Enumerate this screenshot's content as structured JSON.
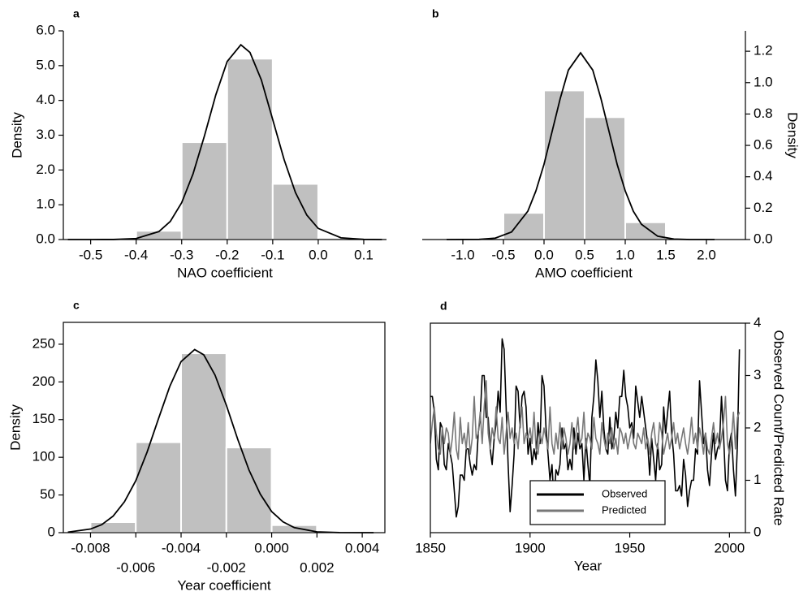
{
  "chart_data": [
    {
      "type": "histogram",
      "label": "a",
      "xlabel": "NAO coefficient",
      "ylabel": "Density",
      "y_axis_side": "left",
      "frame": false,
      "bar_color": "#c0c0c0",
      "curve_color": "#000000",
      "bins": [
        -0.4,
        -0.3,
        -0.2,
        -0.1,
        0.0,
        0.1
      ],
      "values": [
        0.25,
        2.8,
        5.2,
        1.6,
        0.05
      ],
      "curve": {
        "x": [
          -0.55,
          -0.5,
          -0.45,
          -0.4,
          -0.35,
          -0.325,
          -0.3,
          -0.275,
          -0.25,
          -0.225,
          -0.2,
          -0.17,
          -0.15,
          -0.125,
          -0.1,
          -0.075,
          -0.05,
          -0.025,
          0,
          0.05,
          0.1,
          0.14
        ],
        "values": [
          0,
          0,
          0.002,
          0.03,
          0.23,
          0.52,
          1.06,
          1.89,
          2.98,
          4.16,
          5.12,
          5.6,
          5.38,
          4.59,
          3.45,
          2.3,
          1.35,
          0.7,
          0.32,
          0.05,
          0.004,
          0
        ]
      },
      "xlim": [
        -0.56,
        0.15
      ],
      "xticks": [
        -0.5,
        -0.4,
        -0.3,
        -0.2,
        -0.1,
        {
          "value": 0,
          "label": "0.0"
        },
        0.1
      ],
      "ylim": [
        0,
        6
      ],
      "yticks": [
        {
          "value": 0,
          "label": "0.0"
        },
        {
          "value": 1,
          "label": "1.0"
        },
        {
          "value": 2,
          "label": "2.0"
        },
        {
          "value": 3,
          "label": "3.0"
        },
        {
          "value": 4,
          "label": "4.0"
        },
        {
          "value": 5,
          "label": "5.0"
        },
        {
          "value": 6,
          "label": "6.0"
        }
      ]
    },
    {
      "type": "histogram",
      "label": "b",
      "xlabel": "AMO coefficient",
      "ylabel": "Density",
      "y_axis_side": "right",
      "frame": false,
      "bar_color": "#c0c0c0",
      "curve_color": "#000000",
      "bins": [
        -0.5,
        0.0,
        0.5,
        1.0,
        1.5
      ],
      "values": [
        0.17,
        0.95,
        0.78,
        0.11
      ],
      "curve": {
        "x": [
          -1.2,
          -0.8,
          -0.6,
          -0.4,
          -0.2,
          -0.1,
          0,
          0.1,
          0.2,
          0.3,
          0.45,
          0.6,
          0.7,
          0.8,
          0.9,
          1.0,
          1.1,
          1.2,
          1.4,
          1.6,
          1.8,
          2.1
        ],
        "values": [
          0,
          0.001,
          0.009,
          0.048,
          0.18,
          0.31,
          0.48,
          0.69,
          0.9,
          1.08,
          1.19,
          1.08,
          0.9,
          0.69,
          0.48,
          0.31,
          0.18,
          0.097,
          0.021,
          0.003,
          0,
          0
        ]
      },
      "xlim": [
        -1.5,
        2.48
      ],
      "xticks": [
        {
          "value": -1,
          "label": "-1.0"
        },
        -0.5,
        {
          "value": 0,
          "label": "0.0"
        },
        0.5,
        {
          "value": 1,
          "label": "1.0"
        },
        1.5,
        {
          "value": 2,
          "label": "2.0"
        }
      ],
      "ylim": [
        0,
        1.33
      ],
      "yticks": [
        {
          "value": 0,
          "label": "0.0"
        },
        0.2,
        0.4,
        0.6,
        0.8,
        {
          "value": 1,
          "label": "1.0"
        },
        1.2
      ]
    },
    {
      "type": "histogram",
      "label": "c",
      "xlabel": "Year coefficient",
      "ylabel": "Density",
      "y_axis_side": "left",
      "frame": true,
      "xtick_stagger": true,
      "bar_color": "#c0c0c0",
      "curve_color": "#000000",
      "bins": [
        -0.008,
        -0.006,
        -0.004,
        -0.002,
        0.0,
        0.002
      ],
      "values": [
        14,
        120,
        238,
        113,
        10
      ],
      "curve": {
        "x": [
          -0.009,
          -0.008,
          -0.0075,
          -0.007,
          -0.0065,
          -0.006,
          -0.0055,
          -0.005,
          -0.0045,
          -0.004,
          -0.0034,
          -0.003,
          -0.0025,
          -0.002,
          -0.0015,
          -0.001,
          -0.0005,
          0,
          0.0005,
          0.001,
          0.002,
          0.003,
          0.0045
        ],
        "values": [
          0.72,
          4.8,
          10.7,
          22,
          41,
          69,
          107,
          151,
          194,
          227,
          243,
          236,
          209,
          169,
          124,
          83,
          51,
          28,
          14.4,
          6.7,
          1.1,
          0.12,
          0
        ]
      },
      "xlim": [
        -0.0092,
        0.005
      ],
      "xticks": [
        -0.008,
        -0.006,
        -0.004,
        -0.002,
        {
          "value": 0,
          "label": "0.000"
        },
        0.002,
        0.004
      ],
      "ylim": [
        0,
        279
      ],
      "yticks": [
        0,
        50,
        100,
        150,
        200,
        250
      ]
    },
    {
      "type": "line",
      "label": "d",
      "xlabel": "Year",
      "ylabel": "Observed Count/Predicted Rate",
      "y_axis_side": "right",
      "frame": true,
      "legend": "lower center",
      "x": [
        1850,
        1851,
        1852,
        1853,
        1854,
        1855,
        1856,
        1857,
        1858,
        1859,
        1860,
        1861,
        1862,
        1863,
        1864,
        1865,
        1866,
        1867,
        1868,
        1869,
        1870,
        1871,
        1872,
        1873,
        1874,
        1875,
        1876,
        1877,
        1878,
        1879,
        1880,
        1881,
        1882,
        1883,
        1884,
        1885,
        1886,
        1887,
        1888,
        1889,
        1890,
        1891,
        1892,
        1893,
        1894,
        1895,
        1896,
        1897,
        1898,
        1899,
        1900,
        1901,
        1902,
        1903,
        1904,
        1905,
        1906,
        1907,
        1908,
        1909,
        1910,
        1911,
        1912,
        1913,
        1914,
        1915,
        1916,
        1917,
        1918,
        1919,
        1920,
        1921,
        1922,
        1923,
        1924,
        1925,
        1926,
        1927,
        1928,
        1929,
        1930,
        1931,
        1932,
        1933,
        1934,
        1935,
        1936,
        1937,
        1938,
        1939,
        1940,
        1941,
        1942,
        1943,
        1944,
        1945,
        1946,
        1947,
        1948,
        1949,
        1950,
        1951,
        1952,
        1953,
        1954,
        1955,
        1956,
        1957,
        1958,
        1959,
        1960,
        1961,
        1962,
        1963,
        1964,
        1965,
        1966,
        1967,
        1968,
        1969,
        1970,
        1971,
        1972,
        1973,
        1974,
        1975,
        1976,
        1977,
        1978,
        1979,
        1980,
        1981,
        1982,
        1983,
        1984,
        1985,
        1986,
        1987,
        1988,
        1989,
        1990,
        1991,
        1992,
        1993,
        1994,
        1995,
        1996,
        1997,
        1998,
        1999,
        2000,
        2001,
        2002,
        2003,
        2004,
        2005
      ],
      "series": [
        {
          "name": "Observed",
          "color": "#000000",
          "values": [
            2.6,
            2.6,
            2.3,
            1.4,
            1.2,
            2.1,
            2.0,
            1.3,
            1.2,
            1.7,
            1.5,
            1.3,
            0.8,
            0.3,
            0.5,
            1.1,
            1.1,
            1.0,
            1.6,
            1.6,
            1.3,
            1.1,
            1.3,
            1.2,
            1.9,
            2.2,
            3.0,
            3.0,
            2.2,
            2.2,
            1.6,
            1.3,
            1.8,
            2.1,
            2.7,
            2.3,
            3.7,
            3.5,
            2.4,
            1.3,
            0.4,
            0.9,
            1.5,
            2.8,
            2.7,
            2.0,
            2.6,
            2.7,
            2.4,
            1.5,
            1.8,
            1.3,
            1.6,
            1.4,
            2.1,
            1.7,
            3.0,
            2.8,
            2.0,
            1.5,
            1.0,
            1.3,
            0.6,
            1.2,
            1.1,
            1.3,
            2.0,
            1.6,
            1.7,
            1.2,
            1.4,
            1.2,
            2.0,
            1.5,
            1.9,
            1.6,
            1.7,
            1.0,
            1.8,
            1.3,
            0.9,
            2.2,
            2.6,
            3.3,
            2.9,
            2.2,
            2.7,
            2.0,
            1.6,
            1.5,
            2.2,
            1.6,
            1.8,
            2.3,
            2.0,
            2.6,
            2.6,
            3.1,
            2.6,
            2.4,
            2.0,
            2.1,
            1.8,
            2.8,
            2.5,
            2.2,
            2.6,
            2.3,
            2.0,
            1.7,
            1.1,
            1.8,
            1.4,
            1.0,
            1.7,
            1.2,
            1.3,
            2.4,
            1.9,
            2.3,
            2.7,
            1.9,
            1.5,
            0.8,
            0.8,
            0.9,
            0.7,
            1.4,
            1.1,
            0.5,
            0.8,
            1.0,
            1.0,
            1.6,
            1.5,
            2.9,
            2.3,
            1.7,
            1.9,
            1.2,
            0.9,
            1.5,
            1.9,
            1.4,
            1.6,
            1.7,
            2.6,
            1.9,
            1.0,
            0.8,
            1.7,
            1.9,
            1.2,
            0.7,
            1.7,
            3.5
          ]
        },
        {
          "name": "Predicted",
          "color": "#777777",
          "values": [
            1.7,
            2.1,
            2.4,
            1.9,
            1.6,
            1.5,
            2.0,
            1.7,
            2.0,
            1.9,
            1.5,
            1.8,
            2.3,
            1.6,
            1.4,
            2.2,
            1.7,
            1.9,
            1.6,
            2.1,
            1.5,
            1.8,
            2.6,
            1.8,
            1.9,
            2.3,
            1.7,
            2.4,
            2.9,
            1.9,
            1.6,
            2.0,
            1.8,
            2.4,
            1.8,
            1.7,
            2.2,
            1.5,
            1.9,
            2.3,
            1.8,
            2.0,
            1.7,
            1.9,
            1.6,
            2.1,
            2.4,
            1.7,
            1.9,
            1.8,
            2.0,
            1.7,
            2.3,
            1.6,
            1.5,
            1.9,
            1.7,
            2.0,
            1.8,
            1.6,
            2.4,
            1.7,
            1.5,
            1.9,
            1.6,
            2.1,
            1.6,
            2.0,
            1.8,
            1.5,
            1.7,
            2.1,
            1.6,
            1.9,
            2.2,
            1.7,
            1.8,
            2.3,
            1.6,
            1.9,
            1.8,
            1.6,
            2.2,
            1.8,
            1.7,
            1.5,
            2.1,
            1.8,
            1.6,
            1.9,
            1.7,
            2.0,
            1.6,
            1.8,
            1.5,
            2.0,
            1.9,
            1.7,
            1.9,
            1.6,
            1.8,
            2.0,
            1.7,
            1.6,
            1.9,
            1.8,
            1.7,
            2.0,
            1.6,
            1.8,
            1.5,
            1.9,
            2.1,
            1.7,
            1.6,
            2.1,
            1.9,
            1.5,
            1.7,
            1.9,
            1.6,
            1.8,
            2.1,
            1.7,
            1.9,
            1.6,
            1.8,
            2.0,
            1.7,
            1.5,
            1.8,
            2.2,
            1.7,
            1.9,
            1.6,
            2.0,
            1.8,
            1.5,
            1.9,
            1.6,
            1.5,
            1.8,
            2.1,
            1.7,
            1.9,
            1.6,
            1.8,
            2.1,
            2.6,
            1.7,
            1.5,
            1.8,
            2.3,
            1.6,
            2.2,
            2.3
          ]
        }
      ],
      "xlim": [
        1850,
        2008
      ],
      "xticks": [
        1850,
        1900,
        1950,
        2000
      ],
      "ylim": [
        0,
        4
      ],
      "yticks": [
        0,
        1,
        2,
        3,
        4
      ]
    }
  ]
}
